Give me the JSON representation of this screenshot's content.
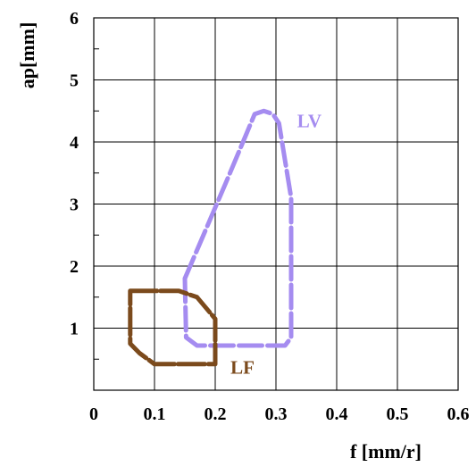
{
  "chart_data": {
    "type": "area",
    "xlabel": "f [mm/r]",
    "ylabel": "ap[mm]",
    "xlim": [
      0,
      0.6
    ],
    "ylim": [
      0,
      6
    ],
    "x_ticks": [
      "0",
      "0.1",
      "0.2",
      "0.3",
      "0.4",
      "0.5",
      "0.6"
    ],
    "y_ticks": [
      "1",
      "2",
      "3",
      "4",
      "5",
      "6"
    ],
    "grid": true,
    "series": [
      {
        "name": "LV",
        "color": "#a58cf0",
        "style": "dashed",
        "points": [
          [
            0.15,
            1.8
          ],
          [
            0.185,
            2.6
          ],
          [
            0.22,
            3.4
          ],
          [
            0.25,
            4.1
          ],
          [
            0.265,
            4.45
          ],
          [
            0.28,
            4.5
          ],
          [
            0.295,
            4.45
          ],
          [
            0.305,
            4.3
          ],
          [
            0.31,
            4.0
          ],
          [
            0.325,
            3.1
          ],
          [
            0.325,
            0.85
          ],
          [
            0.315,
            0.72
          ],
          [
            0.17,
            0.72
          ],
          [
            0.152,
            0.85
          ],
          [
            0.15,
            1.8
          ]
        ]
      },
      {
        "name": "LF",
        "color": "#7b4a1c",
        "style": "dashed",
        "points": [
          [
            0.06,
            1.6
          ],
          [
            0.14,
            1.6
          ],
          [
            0.17,
            1.5
          ],
          [
            0.2,
            1.15
          ],
          [
            0.2,
            0.42
          ],
          [
            0.1,
            0.42
          ],
          [
            0.075,
            0.6
          ],
          [
            0.06,
            0.75
          ],
          [
            0.06,
            1.6
          ]
        ]
      }
    ]
  }
}
